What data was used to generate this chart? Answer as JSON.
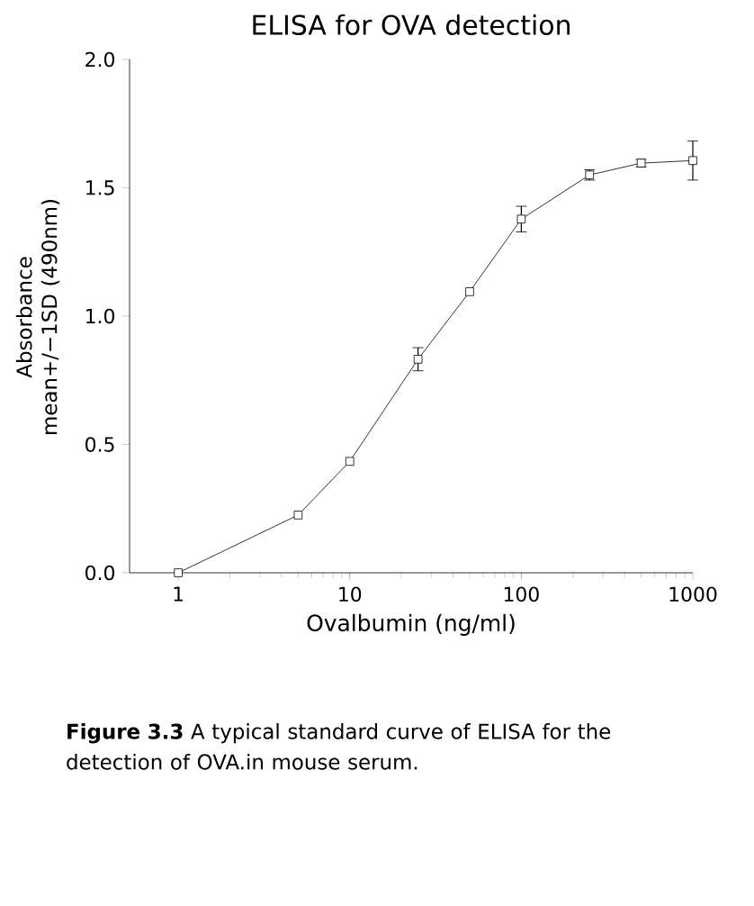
{
  "chart_data": {
    "type": "line",
    "title": "ELISA for OVA detection",
    "xlabel": "Ovalbumin (ng/ml)",
    "ylabel": "Absorbance mean+/−1SD (490nm)",
    "x": [
      1,
      5,
      10,
      25,
      50,
      100,
      250,
      500,
      1000
    ],
    "values": [
      0.0,
      0.225,
      0.434,
      0.832,
      1.095,
      1.378,
      1.55,
      1.596,
      1.606
    ],
    "errors": [
      null,
      null,
      null,
      0.045,
      null,
      0.05,
      0.02,
      0.015,
      0.076
    ],
    "color": "#000000",
    "marker": "square",
    "line_style": "solid",
    "log": "x",
    "xlim": [
      0.52,
      1000
    ],
    "xticks": [
      1,
      10,
      100,
      1000
    ],
    "ylim": [
      0,
      2.0
    ],
    "yticks": [
      {
        "value": 0,
        "label": "0.0"
      },
      {
        "value": 0.5,
        "label": "0.5"
      },
      {
        "value": 1.0,
        "label": "1.0"
      },
      {
        "value": 1.5,
        "label": "1.5"
      },
      {
        "value": 2.0,
        "label": "2.0"
      }
    ],
    "annotations": [
      "**Figure 3.3** A typical standard curve of ELISA for the detection of OVA.in mouse serum."
    ]
  }
}
